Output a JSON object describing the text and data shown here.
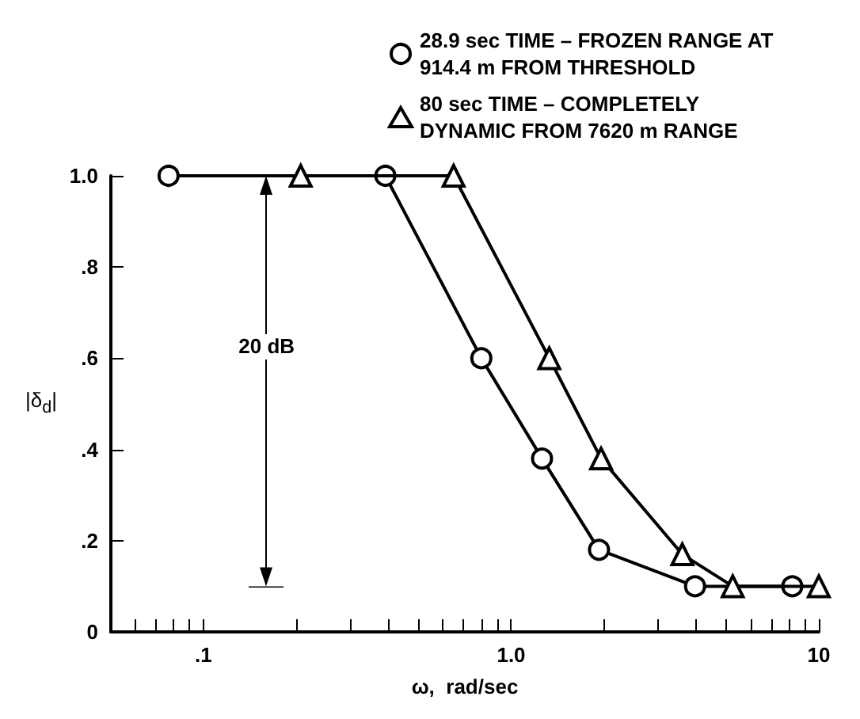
{
  "chart_data": {
    "type": "line",
    "xlabel": "ω,  rad/sec",
    "ylabel": "|δ$_{d}$|",
    "series": [
      {
        "name": "28.9 sec TIME – FROZEN RANGE AT 914.4 m FROM THRESHOLD",
        "color": "#000000",
        "marker": "circle",
        "x": [
          0.077,
          0.39,
          0.8,
          1.26,
          1.93,
          3.96,
          8.2
        ],
        "values": [
          1.0,
          1.0,
          0.6,
          0.38,
          0.18,
          0.1,
          0.1
        ]
      },
      {
        "name": "80 sec TIME – COMPLETELY DYNAMIC FROM 7620 m RANGE",
        "color": "#000000",
        "marker": "triangle",
        "x": [
          0.207,
          0.65,
          1.33,
          1.96,
          3.6,
          5.25,
          10
        ],
        "values": [
          1.0,
          1.0,
          0.6,
          0.38,
          0.17,
          0.1,
          0.1
        ]
      }
    ],
    "annotations": [
      "20 dB"
    ],
    "xlim": [
      0.05,
      10
    ],
    "xticks": [
      {
        "value": 0.06,
        "label": null
      },
      {
        "value": 0.07,
        "label": null
      },
      {
        "value": 0.08,
        "label": null
      },
      {
        "value": 0.09,
        "label": null
      },
      {
        "value": 0.1,
        "label": ".1"
      },
      {
        "value": 0.2,
        "label": null
      },
      {
        "value": 0.3,
        "label": null
      },
      {
        "value": 0.4,
        "label": null
      },
      {
        "value": 0.5,
        "label": null
      },
      {
        "value": 0.6,
        "label": null
      },
      {
        "value": 0.7,
        "label": null
      },
      {
        "value": 0.8,
        "label": null
      },
      {
        "value": 0.9,
        "label": null
      },
      {
        "value": 1,
        "label": "1.0"
      },
      {
        "value": 2,
        "label": null
      },
      {
        "value": 3,
        "label": null
      },
      {
        "value": 4,
        "label": null
      },
      {
        "value": 5,
        "label": null
      },
      {
        "value": 6,
        "label": null
      },
      {
        "value": 7,
        "label": null
      },
      {
        "value": 8,
        "label": null
      },
      {
        "value": 9,
        "label": null
      },
      {
        "value": 10,
        "label": "10"
      }
    ],
    "ylim": [
      0,
      1.0
    ],
    "yticks": [
      {
        "value": 0,
        "label": "0"
      },
      {
        "value": 0.2,
        "label": ".2"
      },
      {
        "value": 0.4,
        "label": ".4"
      },
      {
        "value": 0.6,
        "label": ".6"
      },
      {
        "value": 0.8,
        "label": ".8"
      },
      {
        "value": 1.0,
        "label": "1.0"
      }
    ],
    "log": "x",
    "grid": false,
    "legend": "top right",
    "line_style": "solid"
  }
}
